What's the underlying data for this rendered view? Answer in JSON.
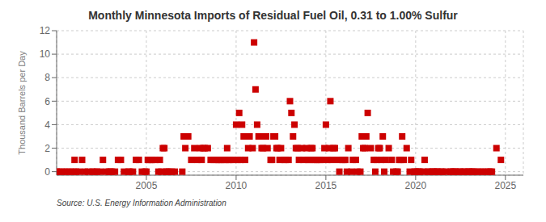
{
  "chart_data": {
    "type": "scatter",
    "title": "Monthly Minnesota Imports of Residual Fuel Oil, 0.31 to 1.00% Sulfur",
    "y_label": "Thousand Barrels per Day",
    "annotations": [
      "Source: U.S. Energy Information Administration"
    ],
    "color": "#cc0000",
    "marker": "square",
    "grid": true,
    "xlim": [
      2000.0,
      2026.0
    ],
    "ylim": [
      -0.3,
      12
    ],
    "xticks": [
      2005,
      2010,
      2015,
      2020,
      2025
    ],
    "yticks": [
      0,
      2,
      4,
      6,
      8,
      10,
      12
    ],
    "x": [
      2000.0,
      2000.08,
      2000.25,
      2000.42,
      2000.58,
      2000.75,
      2000.92,
      2001.0,
      2001.08,
      2001.25,
      2001.42,
      2001.58,
      2001.75,
      2002.0,
      2002.08,
      2002.25,
      2002.42,
      2002.58,
      2002.75,
      2002.92,
      2003.0,
      2003.08,
      2003.25,
      2003.42,
      2003.58,
      2003.75,
      2004.0,
      2004.08,
      2004.25,
      2004.42,
      2004.58,
      2004.75,
      2004.92,
      2005.0,
      2005.08,
      2005.17,
      2005.25,
      2005.33,
      2005.5,
      2005.67,
      2005.75,
      2005.83,
      2005.92,
      2006.0,
      2006.08,
      2006.17,
      2006.25,
      2006.42,
      2006.58,
      2007.0,
      2007.08,
      2007.17,
      2007.33,
      2007.5,
      2007.67,
      2007.83,
      2008.0,
      2008.08,
      2008.17,
      2008.25,
      2008.42,
      2008.58,
      2008.75,
      2008.92,
      2009.0,
      2009.08,
      2009.17,
      2009.33,
      2009.42,
      2009.5,
      2009.58,
      2009.67,
      2009.83,
      2010.0,
      2010.08,
      2010.17,
      2010.25,
      2010.33,
      2010.42,
      2010.5,
      2010.67,
      2010.75,
      2010.92,
      2011.0,
      2011.08,
      2011.17,
      2011.25,
      2011.33,
      2011.42,
      2011.5,
      2011.67,
      2011.75,
      2011.92,
      2012.0,
      2012.08,
      2012.17,
      2012.25,
      2012.33,
      2012.42,
      2012.5,
      2012.67,
      2012.75,
      2012.92,
      2013.0,
      2013.08,
      2013.17,
      2013.25,
      2013.33,
      2013.42,
      2013.5,
      2013.67,
      2013.75,
      2013.92,
      2014.0,
      2014.08,
      2014.17,
      2014.25,
      2014.33,
      2014.42,
      2014.5,
      2014.67,
      2014.75,
      2014.92,
      2015.0,
      2015.08,
      2015.17,
      2015.25,
      2015.33,
      2015.42,
      2015.5,
      2015.67,
      2015.75,
      2015.92,
      2016.0,
      2016.08,
      2016.17,
      2016.25,
      2016.42,
      2016.5,
      2016.67,
      2016.75,
      2016.92,
      2017.0,
      2017.08,
      2017.17,
      2017.25,
      2017.33,
      2017.5,
      2017.67,
      2017.75,
      2017.83,
      2017.92,
      2018.0,
      2018.08,
      2018.17,
      2018.25,
      2018.33,
      2018.5,
      2018.67,
      2018.75,
      2018.92,
      2019.0,
      2019.08,
      2019.17,
      2019.25,
      2019.33,
      2019.5,
      2019.67,
      2019.75,
      2019.92,
      2020.0,
      2020.08,
      2020.17,
      2020.25,
      2020.42,
      2020.5,
      2020.67,
      2020.75,
      2020.92,
      2021.0,
      2021.08,
      2021.17,
      2021.25,
      2021.42,
      2021.5,
      2021.67,
      2021.92,
      2022.0,
      2022.08,
      2022.17,
      2022.25,
      2022.42,
      2022.5,
      2022.67,
      2022.75,
      2022.92,
      2023.0,
      2023.08,
      2023.17,
      2023.25,
      2023.42,
      2023.58,
      2023.75,
      2023.92,
      2024.08,
      2024.17,
      2024.25,
      2024.5,
      2024.75
    ],
    "values": [
      0,
      0,
      0,
      0,
      0,
      0,
      0,
      1,
      0,
      0,
      1,
      0,
      0,
      0,
      0,
      0,
      0,
      1,
      0,
      0,
      0,
      0,
      0,
      1,
      1,
      0,
      0,
      0,
      0,
      1,
      1,
      0,
      0,
      0,
      1,
      1,
      1,
      1,
      1,
      0,
      1,
      0,
      2,
      2,
      0,
      0,
      0,
      0,
      0,
      0,
      3,
      2,
      3,
      1,
      2,
      1,
      2,
      1,
      2,
      2,
      2,
      1,
      1,
      1,
      1,
      1,
      1,
      1,
      1,
      2,
      1,
      1,
      1,
      4,
      1,
      5,
      1,
      4,
      3,
      1,
      2,
      3,
      2,
      11,
      7,
      4,
      3,
      3,
      2,
      2,
      3,
      2,
      1,
      1,
      3,
      3,
      2,
      2,
      1,
      2,
      1,
      1,
      1,
      6,
      5,
      3,
      4,
      2,
      2,
      1,
      2,
      1,
      2,
      1,
      1,
      2,
      2,
      1,
      1,
      1,
      1,
      1,
      2,
      4,
      1,
      2,
      6,
      1,
      2,
      2,
      1,
      0,
      1,
      1,
      1,
      0,
      2,
      0,
      1,
      1,
      0,
      0,
      3,
      2,
      2,
      3,
      5,
      2,
      1,
      0,
      1,
      2,
      2,
      1,
      3,
      0,
      1,
      2,
      1,
      0,
      0,
      0,
      1,
      1,
      3,
      1,
      2,
      0,
      1,
      0,
      0,
      0,
      0,
      0,
      0,
      1,
      0,
      0,
      0,
      0,
      0,
      0,
      0,
      0,
      0,
      0,
      0,
      0,
      0,
      0,
      0,
      0,
      0,
      0,
      0,
      0,
      0,
      0,
      0,
      0,
      0,
      0,
      0,
      0,
      0,
      0,
      0,
      2,
      1
    ]
  }
}
